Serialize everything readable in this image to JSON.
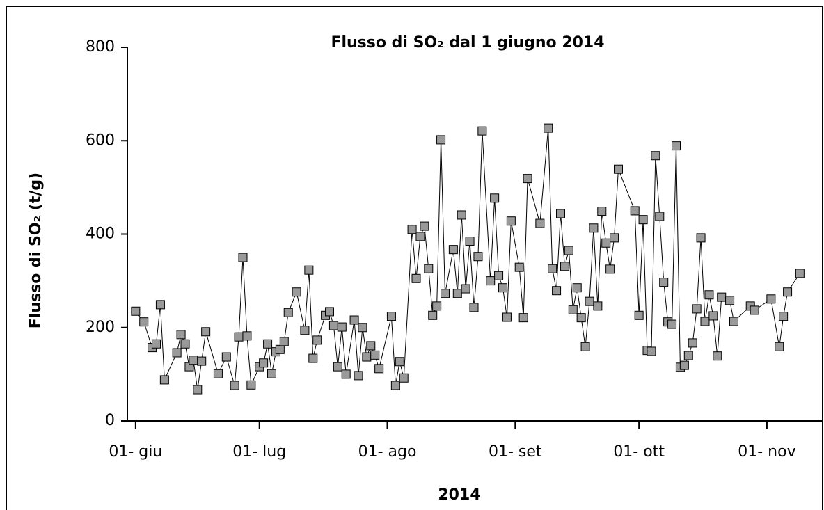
{
  "chart_data": {
    "type": "line",
    "title": "Flusso di SO₂ dal 1 giugno 2014",
    "x_label": "2014",
    "y_label": "Flusso di SO₂ (t/g)",
    "color": "#999999",
    "x": [
      "2014-06-01",
      "2014-06-03",
      "2014-06-05",
      "2014-06-06",
      "2014-06-07",
      "2014-06-08",
      "2014-06-11",
      "2014-06-12",
      "2014-06-13",
      "2014-06-14",
      "2014-06-15",
      "2014-06-16",
      "2014-06-17",
      "2014-06-18",
      "2014-06-21",
      "2014-06-23",
      "2014-06-25",
      "2014-06-26",
      "2014-06-27",
      "2014-06-28",
      "2014-06-29",
      "2014-07-01",
      "2014-07-02",
      "2014-07-03",
      "2014-07-04",
      "2014-07-05",
      "2014-07-06",
      "2014-07-07",
      "2014-07-08",
      "2014-07-10",
      "2014-07-12",
      "2014-07-13",
      "2014-07-14",
      "2014-07-15",
      "2014-07-17",
      "2014-07-18",
      "2014-07-19",
      "2014-07-20",
      "2014-07-21",
      "2014-07-22",
      "2014-07-24",
      "2014-07-25",
      "2014-07-26",
      "2014-07-27",
      "2014-07-28",
      "2014-07-29",
      "2014-07-30",
      "2014-08-02",
      "2014-08-03",
      "2014-08-04",
      "2014-08-05",
      "2014-08-07",
      "2014-08-08",
      "2014-08-09",
      "2014-08-10",
      "2014-08-11",
      "2014-08-12",
      "2014-08-13",
      "2014-08-14",
      "2014-08-15",
      "2014-08-17",
      "2014-08-18",
      "2014-08-19",
      "2014-08-20",
      "2014-08-21",
      "2014-08-22",
      "2014-08-23",
      "2014-08-24",
      "2014-08-26",
      "2014-08-27",
      "2014-08-28",
      "2014-08-29",
      "2014-08-30",
      "2014-08-31",
      "2014-09-02",
      "2014-09-03",
      "2014-09-04",
      "2014-09-07",
      "2014-09-09",
      "2014-09-10",
      "2014-09-11",
      "2014-09-12",
      "2014-09-13",
      "2014-09-14",
      "2014-09-15",
      "2014-09-16",
      "2014-09-17",
      "2014-09-18",
      "2014-09-19",
      "2014-09-20",
      "2014-09-21",
      "2014-09-22",
      "2014-09-23",
      "2014-09-24",
      "2014-09-25",
      "2014-09-26",
      "2014-09-30",
      "2014-10-01",
      "2014-10-02",
      "2014-10-03",
      "2014-10-04",
      "2014-10-05",
      "2014-10-06",
      "2014-10-07",
      "2014-10-08",
      "2014-10-09",
      "2014-10-10",
      "2014-10-11",
      "2014-10-12",
      "2014-10-13",
      "2014-10-14",
      "2014-10-15",
      "2014-10-16",
      "2014-10-17",
      "2014-10-18",
      "2014-10-19",
      "2014-10-20",
      "2014-10-21",
      "2014-10-23",
      "2014-10-24",
      "2014-10-28",
      "2014-10-29",
      "2014-11-02",
      "2014-11-04",
      "2014-11-05",
      "2014-11-06",
      "2014-11-09"
    ],
    "values": [
      235,
      212,
      157,
      165,
      249,
      88,
      146,
      185,
      165,
      116,
      130,
      67,
      128,
      191,
      101,
      137,
      76,
      180,
      350,
      182,
      77,
      116,
      124,
      165,
      101,
      148,
      153,
      170,
      232,
      276,
      194,
      323,
      134,
      173,
      226,
      234,
      204,
      116,
      201,
      100,
      216,
      97,
      200,
      137,
      161,
      141,
      112,
      224,
      76,
      127,
      92,
      410,
      305,
      395,
      417,
      326,
      226,
      246,
      602,
      273,
      367,
      273,
      441,
      283,
      385,
      243,
      352,
      621,
      300,
      477,
      311,
      285,
      222,
      428,
      329,
      221,
      519,
      423,
      627,
      326,
      279,
      444,
      331,
      365,
      238,
      285,
      221,
      159,
      256,
      413,
      246,
      449,
      381,
      325,
      392,
      539,
      450,
      226,
      431,
      151,
      149,
      568,
      438,
      297,
      212,
      207,
      589,
      115,
      119,
      140,
      167,
      240,
      392,
      213,
      270,
      225,
      139,
      265,
      258,
      213,
      246,
      237,
      261,
      159,
      224,
      276,
      316
    ],
    "xlim": [
      "2014-05-30",
      "2014-11-14"
    ],
    "xticks": [
      {
        "value": "2014-06-01",
        "label": "01- giu"
      },
      {
        "value": "2014-07-01",
        "label": "01- lug"
      },
      {
        "value": "2014-08-01",
        "label": "01- ago"
      },
      {
        "value": "2014-09-01",
        "label": "01- set"
      },
      {
        "value": "2014-10-01",
        "label": "01- ott"
      },
      {
        "value": "2014-11-01",
        "label": "01- nov"
      }
    ],
    "ylim": [
      0,
      800
    ],
    "yticks": [
      0,
      200,
      400,
      600,
      800
    ]
  }
}
